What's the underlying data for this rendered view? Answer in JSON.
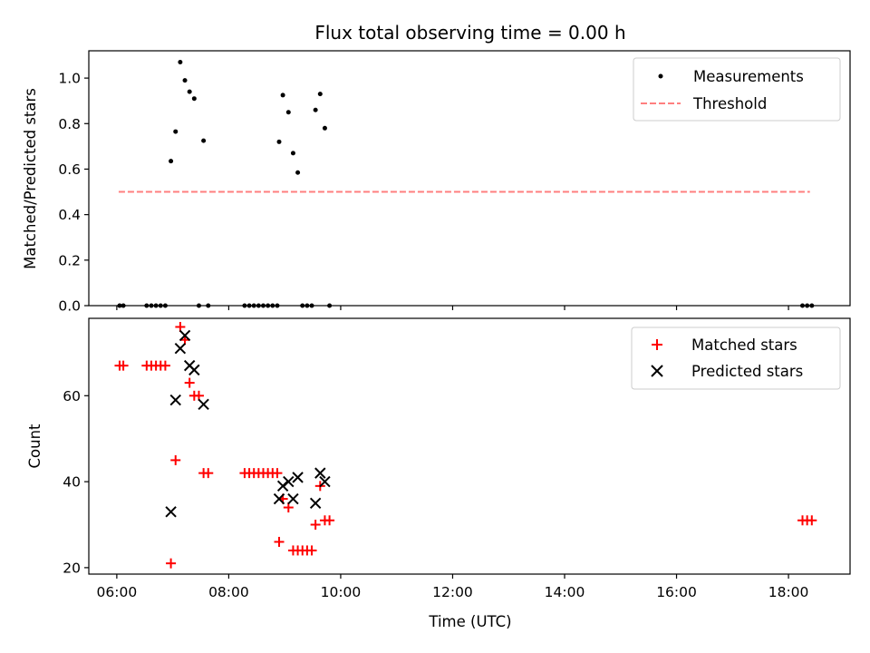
{
  "chart_data": {
    "type": "scatter",
    "title": "Flux total observing time = 0.00 h",
    "xlabel": "Time (UTC)",
    "x_ticks": [
      "06:00",
      "08:00",
      "10:00",
      "12:00",
      "14:00",
      "16:00",
      "18:00"
    ],
    "xlim_hours": [
      5.5,
      19.1
    ],
    "panels": [
      {
        "ylabel": "Matched/Predicted stars",
        "ylim": [
          0,
          1.12
        ],
        "y_ticks": [
          "0.0",
          "0.2",
          "0.4",
          "0.6",
          "0.8",
          "1.0"
        ],
        "legend": "top-right",
        "series": [
          {
            "name": "Measurements",
            "marker": "dot",
            "color": "#000000",
            "points": [
              [
                "06:03",
                0.0
              ],
              [
                "06:07",
                0.0
              ],
              [
                "06:32",
                0.0
              ],
              [
                "06:37",
                0.0
              ],
              [
                "06:42",
                0.0
              ],
              [
                "06:47",
                0.0
              ],
              [
                "06:52",
                0.0
              ],
              [
                "06:58",
                0.635
              ],
              [
                "07:03",
                0.765
              ],
              [
                "07:08",
                1.07
              ],
              [
                "07:13",
                0.99
              ],
              [
                "07:18",
                0.94
              ],
              [
                "07:23",
                0.91
              ],
              [
                "07:28",
                0.0
              ],
              [
                "07:33",
                0.725
              ],
              [
                "07:38",
                0.0
              ],
              [
                "08:17",
                0.0
              ],
              [
                "08:22",
                0.0
              ],
              [
                "08:27",
                0.0
              ],
              [
                "08:32",
                0.0
              ],
              [
                "08:37",
                0.0
              ],
              [
                "08:42",
                0.0
              ],
              [
                "08:47",
                0.0
              ],
              [
                "08:52",
                0.0
              ],
              [
                "08:54",
                0.72
              ],
              [
                "08:58",
                0.925
              ],
              [
                "09:04",
                0.85
              ],
              [
                "09:09",
                0.67
              ],
              [
                "09:14",
                0.585
              ],
              [
                "09:19",
                0.0
              ],
              [
                "09:24",
                0.0
              ],
              [
                "09:29",
                0.0
              ],
              [
                "09:33",
                0.86
              ],
              [
                "09:38",
                0.93
              ],
              [
                "09:43",
                0.78
              ],
              [
                "09:48",
                0.0
              ],
              [
                "18:15",
                0.0
              ],
              [
                "18:20",
                0.0
              ],
              [
                "18:25",
                0.0
              ]
            ]
          },
          {
            "name": "Threshold",
            "type": "line",
            "style": "dashed",
            "color": "#ff7f7f",
            "points": [
              [
                "06:02",
                0.5
              ],
              [
                "18:23",
                0.5
              ]
            ]
          }
        ]
      },
      {
        "ylabel": "Count",
        "ylim": [
          18.5,
          78
        ],
        "y_ticks": [
          "20",
          "40",
          "60"
        ],
        "legend": "top-right",
        "series": [
          {
            "name": "Matched stars",
            "marker": "plus",
            "color": "#ff0000",
            "points": [
              [
                "06:03",
                67
              ],
              [
                "06:07",
                67
              ],
              [
                "06:32",
                67
              ],
              [
                "06:37",
                67
              ],
              [
                "06:42",
                67
              ],
              [
                "06:47",
                67
              ],
              [
                "06:52",
                67
              ],
              [
                "06:58",
                21
              ],
              [
                "07:03",
                45
              ],
              [
                "07:08",
                76
              ],
              [
                "07:13",
                73
              ],
              [
                "07:18",
                63
              ],
              [
                "07:23",
                60
              ],
              [
                "07:28",
                60
              ],
              [
                "07:33",
                42
              ],
              [
                "07:38",
                42
              ],
              [
                "08:17",
                42
              ],
              [
                "08:22",
                42
              ],
              [
                "08:27",
                42
              ],
              [
                "08:32",
                42
              ],
              [
                "08:37",
                42
              ],
              [
                "08:42",
                42
              ],
              [
                "08:47",
                42
              ],
              [
                "08:52",
                42
              ],
              [
                "08:54",
                26
              ],
              [
                "08:58",
                36
              ],
              [
                "09:04",
                34
              ],
              [
                "09:09",
                24
              ],
              [
                "09:14",
                24
              ],
              [
                "09:19",
                24
              ],
              [
                "09:24",
                24
              ],
              [
                "09:29",
                24
              ],
              [
                "09:33",
                30
              ],
              [
                "09:38",
                39
              ],
              [
                "09:43",
                31
              ],
              [
                "09:48",
                31
              ],
              [
                "18:15",
                31
              ],
              [
                "18:20",
                31
              ],
              [
                "18:25",
                31
              ]
            ]
          },
          {
            "name": "Predicted stars",
            "marker": "x",
            "color": "#000000",
            "points": [
              [
                "06:58",
                33
              ],
              [
                "07:03",
                59
              ],
              [
                "07:08",
                71
              ],
              [
                "07:13",
                74
              ],
              [
                "07:18",
                67
              ],
              [
                "07:23",
                66
              ],
              [
                "07:33",
                58
              ],
              [
                "08:54",
                36
              ],
              [
                "08:58",
                39
              ],
              [
                "09:04",
                40
              ],
              [
                "09:09",
                36
              ],
              [
                "09:14",
                41
              ],
              [
                "09:33",
                35
              ],
              [
                "09:38",
                42
              ],
              [
                "09:43",
                40
              ]
            ]
          }
        ]
      }
    ]
  }
}
